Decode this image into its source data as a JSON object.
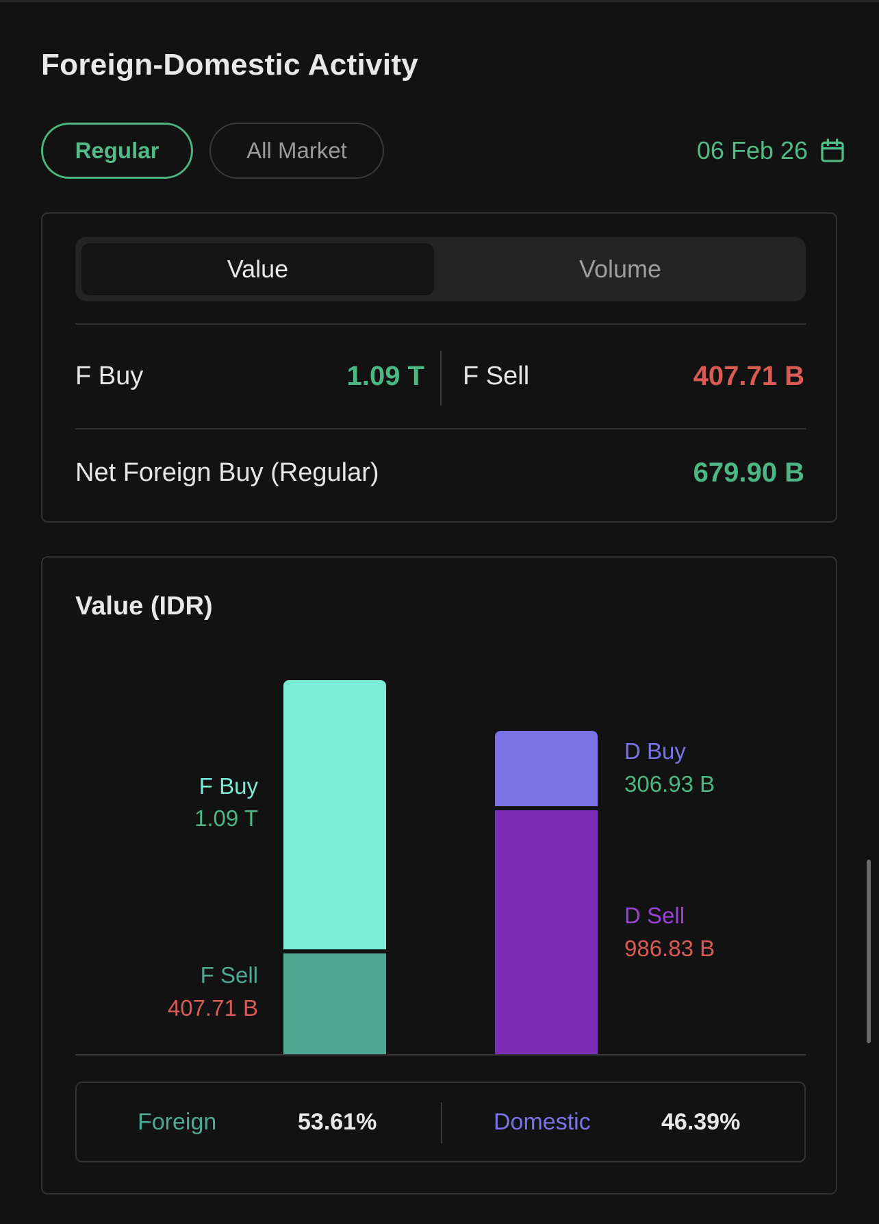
{
  "header": {
    "title": "Foreign-Domestic Activity"
  },
  "market_filter": {
    "options": [
      "Regular",
      "All Market"
    ],
    "selected": "Regular"
  },
  "date": {
    "label": "06 Feb 26",
    "icon": "calendar-icon"
  },
  "toggle": {
    "options": [
      "Value",
      "Volume"
    ],
    "selected": "Value"
  },
  "summary_top": {
    "f_buy_label": "F Buy",
    "f_buy_value": "1.09 T",
    "f_sell_label": "F Sell",
    "f_sell_value": "407.71 B",
    "net_label": "Net Foreign Buy (Regular)",
    "net_value": "679.90 B"
  },
  "colors": {
    "accent_green": "#4cb685",
    "accent_red": "#d85b55",
    "f_buy": "#7aecd5",
    "f_sell": "#4ea993",
    "d_buy": "#7a72e6",
    "d_sell": "#7b2db8"
  },
  "chart_data": {
    "type": "bar",
    "title": "Value (IDR)",
    "stacked": true,
    "categories": [
      "Foreign",
      "Domestic"
    ],
    "series": [
      {
        "name": "F Buy",
        "category": "Foreign",
        "value_label": "1.09 T",
        "value": 1090
      },
      {
        "name": "F Sell",
        "category": "Foreign",
        "value_label": "407.71 B",
        "value": 407.71
      },
      {
        "name": "D Buy",
        "category": "Domestic",
        "value_label": "306.93 B",
        "value": 306.93
      },
      {
        "name": "D Sell",
        "category": "Domestic",
        "value_label": "986.83 B",
        "value": 986.83
      }
    ],
    "unit": "B IDR"
  },
  "share": {
    "foreign_label": "Foreign",
    "foreign_pct": "53.61%",
    "domestic_label": "Domestic",
    "domestic_pct": "46.39%"
  }
}
